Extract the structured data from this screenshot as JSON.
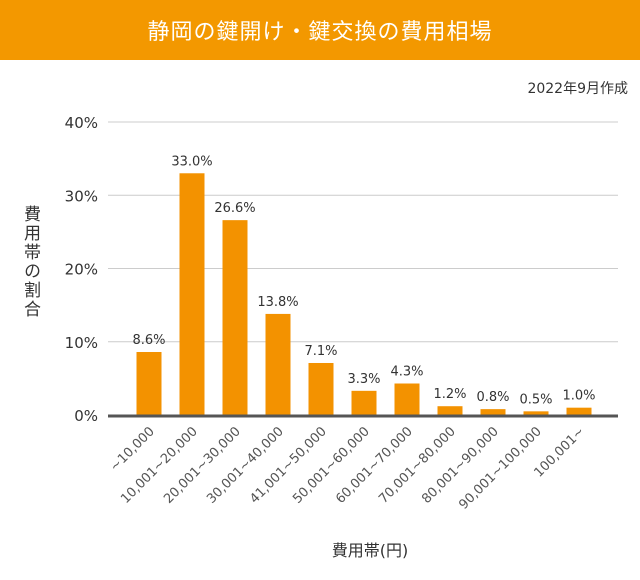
{
  "chart_data": {
    "type": "bar",
    "title": "静岡の鍵開け・鍵交換の費用相場",
    "note": "2022年9月作成",
    "xlabel": "費用帯(円)",
    "ylabel": "費用帯の割合",
    "categories": [
      "~10,000",
      "10,001~20,000",
      "20,001~30,000",
      "30,001~40,000",
      "41,001~50,000",
      "50,001~60,000",
      "60,001~70,000",
      "70,001~80,000",
      "80,001~90,000",
      "90,001~100,000",
      "100,001~"
    ],
    "values": [
      8.6,
      33.0,
      26.6,
      13.8,
      7.1,
      3.3,
      4.3,
      1.2,
      0.8,
      0.5,
      1.0
    ],
    "data_labels": [
      "8.6%",
      "33.0%",
      "26.6%",
      "13.8%",
      "7.1%",
      "3.3%",
      "4.3%",
      "1.2%",
      "0.8%",
      "0.5%",
      "1.0%"
    ],
    "yticks": [
      "0%",
      "10%",
      "20%",
      "30%",
      "40%"
    ],
    "ylim": [
      0,
      40
    ],
    "grid": true,
    "bar_color": "#f39200",
    "title_bg": "#f39800"
  }
}
